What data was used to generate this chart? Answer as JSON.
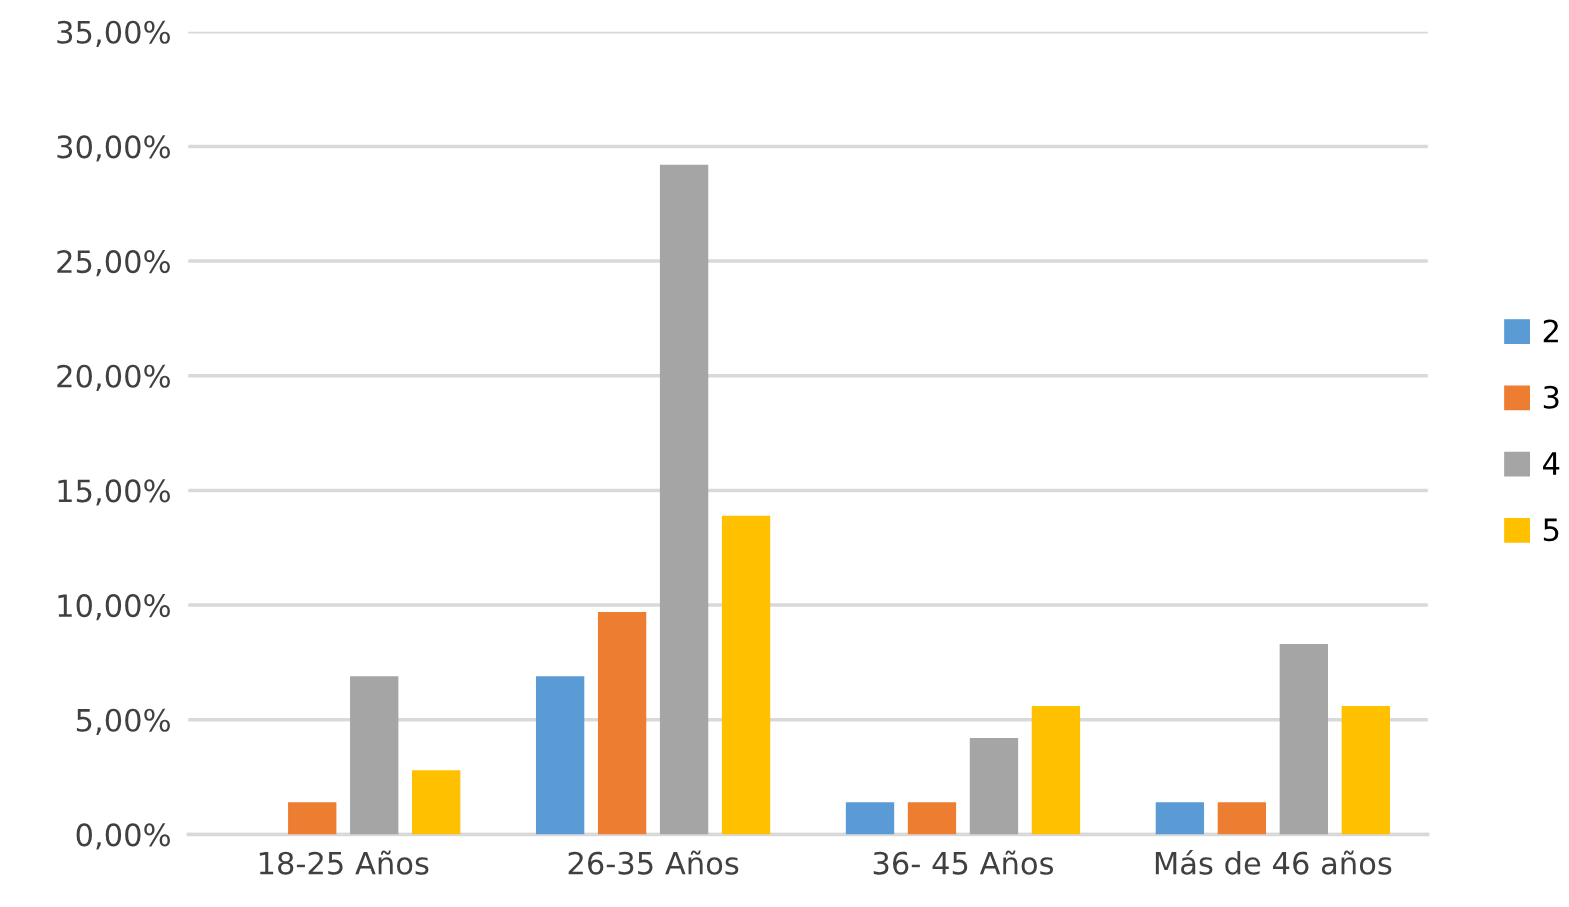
{
  "chart_data": {
    "type": "bar",
    "categories": [
      "18-25 Años",
      "26-35 Años",
      "36- 45 Años",
      "Más de 46 años"
    ],
    "series": [
      {
        "name": "2",
        "color": "#5b9bd5",
        "values": [
          0,
          6.9,
          1.4,
          1.4
        ]
      },
      {
        "name": "3",
        "color": "#ed7d31",
        "values": [
          1.4,
          9.7,
          1.4,
          1.4
        ]
      },
      {
        "name": "4",
        "color": "#a5a5a5",
        "values": [
          6.9,
          29.2,
          4.2,
          8.3
        ]
      },
      {
        "name": "5",
        "color": "#ffc000",
        "values": [
          2.8,
          13.9,
          5.6,
          5.6
        ]
      }
    ],
    "ylim": [
      0,
      35
    ],
    "yticks": [
      {
        "value": 0,
        "label": "0,00%"
      },
      {
        "value": 5,
        "label": "5,00%"
      },
      {
        "value": 10,
        "label": "10,00%"
      },
      {
        "value": 15,
        "label": "15,00%"
      },
      {
        "value": 20,
        "label": "20,00%"
      },
      {
        "value": 25,
        "label": "25,00%"
      },
      {
        "value": 30,
        "label": "30,00%"
      },
      {
        "value": 35,
        "label": "35,00%"
      }
    ],
    "grid": "y",
    "legend": "right"
  }
}
